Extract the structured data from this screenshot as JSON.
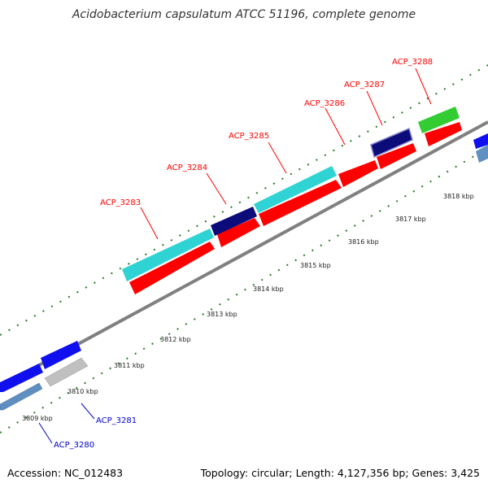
{
  "title": "Acidobacterium capsulatum ATCC 51196, complete genome",
  "footer": {
    "accession": "Accession: NC_012483",
    "summary": "Topology: circular; Length: 4,127,356 bp; Genes: 3,425"
  },
  "colors": {
    "forward_cds": "#ff0000",
    "reverse_strand_label": "#0000cc",
    "cyan_gene": "#2fd3d3",
    "navy_gene": "#0b0b7a",
    "green_gene": "#33cc33",
    "blue_gene": "#1010ee",
    "gray_gene": "#c0c0c0",
    "steelblue_gene": "#5f8fc0",
    "backbone": "#808080",
    "tick": "#2a7a2a"
  },
  "scale_labels": [
    {
      "id": "kbp-3809",
      "text": "3809 kbp"
    },
    {
      "id": "kbp-3810",
      "text": "3810 kbp"
    },
    {
      "id": "kbp-3811",
      "text": "3811 kbp"
    },
    {
      "id": "kbp-3812",
      "text": "3812 kbp"
    },
    {
      "id": "kbp-3813",
      "text": "3813 kbp"
    },
    {
      "id": "kbp-3814",
      "text": "3814 kbp"
    },
    {
      "id": "kbp-3815",
      "text": "3815 kbp"
    },
    {
      "id": "kbp-3816",
      "text": "3816 kbp"
    },
    {
      "id": "kbp-3817",
      "text": "3817 kbp"
    },
    {
      "id": "kbp-3818",
      "text": "3818 kbp"
    }
  ],
  "gene_labels": [
    {
      "id": "acp3280",
      "text": "ACP_3280",
      "strand": "reverse"
    },
    {
      "id": "acp3281",
      "text": "ACP_3281",
      "strand": "reverse"
    },
    {
      "id": "acp3283",
      "text": "ACP_3283",
      "strand": "forward"
    },
    {
      "id": "acp3284",
      "text": "ACP_3284",
      "strand": "forward"
    },
    {
      "id": "acp3285",
      "text": "ACP_3285",
      "strand": "forward"
    },
    {
      "id": "acp3286",
      "text": "ACP_3286",
      "strand": "forward"
    },
    {
      "id": "acp3287",
      "text": "ACP_3287",
      "strand": "forward"
    },
    {
      "id": "acp3288",
      "text": "ACP_3288",
      "strand": "forward"
    }
  ]
}
